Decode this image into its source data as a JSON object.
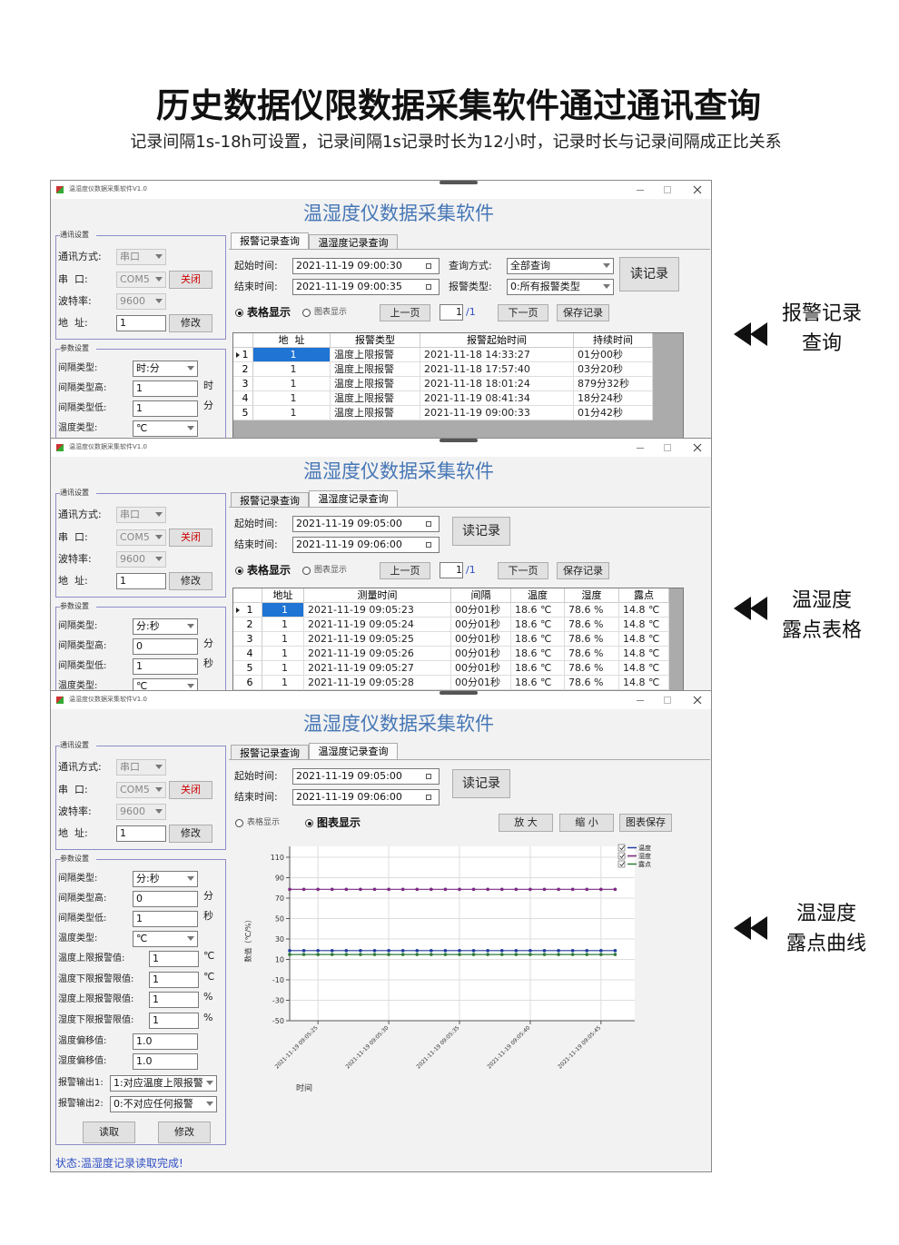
{
  "header": {
    "title": "历史数据仪限数据采集软件通过通讯查询",
    "subtitle": "记录间隔1s-18h可设置，记录间隔1s记录时长为12小时，记录时长与记录间隔成正比关系"
  },
  "annotations": [
    [
      "报警记录",
      "查询"
    ],
    [
      "温湿度",
      "露点表格"
    ],
    [
      "温湿度",
      "露点曲线"
    ]
  ],
  "window1": {
    "titlebar": "温湿度仪数据采集软件V1.0",
    "app_title": "温湿度仪数据采集软件",
    "comm": {
      "group": "通讯设置",
      "fields": [
        {
          "label": "通讯方式:",
          "value": "串口"
        },
        {
          "label": "串  口:",
          "value": "COM5",
          "button": "关闭"
        },
        {
          "label": "波特率:",
          "value": "9600"
        },
        {
          "label": "地  址:",
          "value": "1",
          "button": "修改"
        }
      ]
    },
    "params": {
      "group": "参数设置",
      "fields": [
        {
          "label": "间隔类型:",
          "value": "时:分"
        },
        {
          "label": "间隔类型高:",
          "value": "1",
          "unit": "时"
        },
        {
          "label": "间隔类型低:",
          "value": "1",
          "unit": "分"
        },
        {
          "label": "温度类型:",
          "value": "℃"
        }
      ]
    },
    "tabs": [
      "报警记录查询",
      "温湿度记录查询"
    ],
    "active_tab": 0,
    "query": {
      "start": {
        "label": "起始时间:",
        "value": "2021-11-19 09:00:30"
      },
      "end": {
        "label": "结束时间:",
        "value": "2021-11-19 09:00:35"
      },
      "mode": {
        "label": "查询方式:",
        "value": "全部查询"
      },
      "alarm_type": {
        "label": "报警类型:",
        "value": "0:所有报警类型"
      },
      "read_button": "读记录",
      "display": {
        "table": "表格显示",
        "chart": "图表显示",
        "selected": "table"
      },
      "pager": {
        "prev": "上一页",
        "page": "1",
        "total": "/1",
        "next": "下一页"
      },
      "save": "保存记录"
    },
    "table": {
      "columns": [
        "地  址",
        "报警类型",
        "报警起始时间",
        "持续时间"
      ],
      "rows": [
        {
          "no": "1",
          "cells": [
            "1",
            "温度上限报警",
            "2021-11-18 14:33:27",
            "01分00秒"
          ]
        },
        {
          "no": "2",
          "cells": [
            "1",
            "温度上限报警",
            "2021-11-18 17:57:40",
            "03分20秒"
          ]
        },
        {
          "no": "3",
          "cells": [
            "1",
            "温度上限报警",
            "2021-11-18 18:01:24",
            "879分32秒"
          ]
        },
        {
          "no": "4",
          "cells": [
            "1",
            "温度上限报警",
            "2021-11-19 08:41:34",
            "18分24秒"
          ]
        },
        {
          "no": "5",
          "cells": [
            "1",
            "温度上限报警",
            "2021-11-19 09:00:33",
            "01分42秒"
          ]
        }
      ]
    }
  },
  "window2": {
    "titlebar": "温湿度仪数据采集软件V1.0",
    "app_title": "温湿度仪数据采集软件",
    "comm": {
      "group": "通讯设置",
      "fields": [
        {
          "label": "通讯方式:",
          "value": "串口"
        },
        {
          "label": "串  口:",
          "value": "COM5",
          "button": "关闭"
        },
        {
          "label": "波特率:",
          "value": "9600"
        },
        {
          "label": "地  址:",
          "value": "1",
          "button": "修改"
        }
      ]
    },
    "params": {
      "group": "参数设置",
      "fields": [
        {
          "label": "间隔类型:",
          "value": "分:秒"
        },
        {
          "label": "间隔类型高:",
          "value": "0",
          "unit": "分"
        },
        {
          "label": "间隔类型低:",
          "value": "1",
          "unit": "秒"
        },
        {
          "label": "温度类型:",
          "value": "℃"
        }
      ]
    },
    "tabs": [
      "报警记录查询",
      "温湿度记录查询"
    ],
    "active_tab": 1,
    "query": {
      "start": {
        "label": "起始时间:",
        "value": "2021-11-19 09:05:00"
      },
      "end": {
        "label": "结束时间:",
        "value": "2021-11-19 09:06:00"
      },
      "read_button": "读记录",
      "display": {
        "table": "表格显示",
        "chart": "图表显示",
        "selected": "table"
      },
      "pager": {
        "prev": "上一页",
        "page": "1",
        "total": "/1",
        "next": "下一页"
      },
      "save": "保存记录"
    },
    "table": {
      "columns": [
        "地址",
        "测量时间",
        "间隔",
        "温度",
        "湿度",
        "露点"
      ],
      "rows": [
        {
          "no": "1",
          "cells": [
            "1",
            "2021-11-19 09:05:23",
            "00分01秒",
            "18.6 ℃",
            "78.6 %",
            "14.8 ℃"
          ]
        },
        {
          "no": "2",
          "cells": [
            "1",
            "2021-11-19 09:05:24",
            "00分01秒",
            "18.6 ℃",
            "78.6 %",
            "14.8 ℃"
          ]
        },
        {
          "no": "3",
          "cells": [
            "1",
            "2021-11-19 09:05:25",
            "00分01秒",
            "18.6 ℃",
            "78.6 %",
            "14.8 ℃"
          ]
        },
        {
          "no": "4",
          "cells": [
            "1",
            "2021-11-19 09:05:26",
            "00分01秒",
            "18.6 ℃",
            "78.6 %",
            "14.8 ℃"
          ]
        },
        {
          "no": "5",
          "cells": [
            "1",
            "2021-11-19 09:05:27",
            "00分01秒",
            "18.6 ℃",
            "78.6 %",
            "14.8 ℃"
          ]
        },
        {
          "no": "6",
          "cells": [
            "1",
            "2021-11-19 09:05:28",
            "00分01秒",
            "18.6 ℃",
            "78.6 %",
            "14.8 ℃"
          ]
        }
      ]
    }
  },
  "window3": {
    "titlebar": "温湿度仪数据采集软件V1.0",
    "app_title": "温湿度仪数据采集软件",
    "comm": {
      "group": "通讯设置",
      "fields": [
        {
          "label": "通讯方式:",
          "value": "串口"
        },
        {
          "label": "串  口:",
          "value": "COM5",
          "button": "关闭"
        },
        {
          "label": "波特率:",
          "value": "9600"
        },
        {
          "label": "地  址:",
          "value": "1",
          "button": "修改"
        }
      ]
    },
    "params": {
      "group": "参数设置",
      "fields": [
        {
          "label": "间隔类型:",
          "value": "分:秒"
        },
        {
          "label": "间隔类型高:",
          "value": "0",
          "unit": "分"
        },
        {
          "label": "间隔类型低:",
          "value": "1",
          "unit": "秒"
        },
        {
          "label": "温度类型:",
          "value": "℃"
        },
        {
          "label": "温度上限报警值:",
          "value": "1",
          "unit": "℃"
        },
        {
          "label": "温度下限报警限值:",
          "value": "1",
          "unit": "℃"
        },
        {
          "label": "湿度上限报警限值:",
          "value": "1",
          "unit": "%"
        },
        {
          "label": "湿度下限报警限值:",
          "value": "1",
          "unit": "%"
        },
        {
          "label": "温度偏移值:",
          "value": "1.0"
        },
        {
          "label": "湿度偏移值:",
          "value": "1.0"
        },
        {
          "label": "报警输出1:",
          "value": "1:对应温度上限报警"
        },
        {
          "label": "报警输出2:",
          "value": "0:不对应任何报警"
        }
      ],
      "buttons": [
        "读取",
        "修改"
      ]
    },
    "status": "状态:温湿度记录读取完成!",
    "tabs": [
      "报警记录查询",
      "温湿度记录查询"
    ],
    "active_tab": 1,
    "query": {
      "start": {
        "label": "起始时间:",
        "value": "2021-11-19 09:05:00"
      },
      "end": {
        "label": "结束时间:",
        "value": "2021-11-19 09:06:00"
      },
      "read_button": "读记录",
      "display": {
        "table": "表格显示",
        "chart": "图表显示",
        "selected": "chart"
      },
      "buttons": [
        "放 大",
        "缩 小",
        "图表保存"
      ]
    },
    "chart": {
      "type": "line",
      "y_label": "数值（℃/%）",
      "x_label": "时间",
      "x": [
        "2021-11-19 09:05:23",
        "2021-11-19 09:05:24",
        "2021-11-19 09:05:25",
        "2021-11-19 09:05:26",
        "2021-11-19 09:05:27",
        "2021-11-19 09:05:28",
        "2021-11-19 09:05:29",
        "2021-11-19 09:05:30",
        "2021-11-19 09:05:31",
        "2021-11-19 09:05:32",
        "2021-11-19 09:05:33",
        "2021-11-19 09:05:34",
        "2021-11-19 09:05:35",
        "2021-11-19 09:05:36",
        "2021-11-19 09:05:37",
        "2021-11-19 09:05:38",
        "2021-11-19 09:05:39",
        "2021-11-19 09:05:40",
        "2021-11-19 09:05:41",
        "2021-11-19 09:05:42",
        "2021-11-19 09:05:43",
        "2021-11-19 09:05:44",
        "2021-11-19 09:05:45",
        "2021-11-19 09:05:46"
      ],
      "xlim": [
        "2021-11-19 09:05:23",
        "2021-11-19 09:05:47"
      ],
      "xticks": [
        "2021-11-19 09:05:25",
        "2021-11-19 09:05:30",
        "2021-11-19 09:05:35",
        "2021-11-19 09:05:40",
        "2021-11-19 09:05:45"
      ],
      "ylim": [
        -50,
        110
      ],
      "yticks": [
        110,
        90,
        70,
        50,
        30,
        10,
        -10,
        -30,
        -50
      ],
      "grid": true,
      "series": [
        {
          "name": "温度",
          "color": "#1f3a9c",
          "values": [
            18.6,
            18.6,
            18.6,
            18.6,
            18.6,
            18.6,
            18.6,
            18.6,
            18.6,
            18.6,
            18.6,
            18.6,
            18.6,
            18.6,
            18.6,
            18.6,
            18.6,
            18.6,
            18.6,
            18.6,
            18.6,
            18.6,
            18.6,
            18.6
          ]
        },
        {
          "name": "湿度",
          "color": "#7b2a83",
          "values": [
            78.6,
            78.6,
            78.6,
            78.6,
            78.6,
            78.6,
            78.6,
            78.6,
            78.6,
            78.6,
            78.6,
            78.6,
            78.6,
            78.6,
            78.6,
            78.6,
            78.6,
            78.6,
            78.6,
            78.6,
            78.6,
            78.6,
            78.6,
            78.6
          ]
        },
        {
          "name": "露点",
          "color": "#2e7a38",
          "values": [
            14.8,
            14.8,
            14.8,
            14.8,
            14.8,
            14.8,
            14.8,
            14.8,
            14.8,
            14.8,
            14.8,
            14.8,
            14.8,
            14.8,
            14.8,
            14.8,
            14.8,
            14.8,
            14.8,
            14.8,
            14.8,
            14.8,
            14.8,
            14.8
          ]
        }
      ]
    }
  }
}
